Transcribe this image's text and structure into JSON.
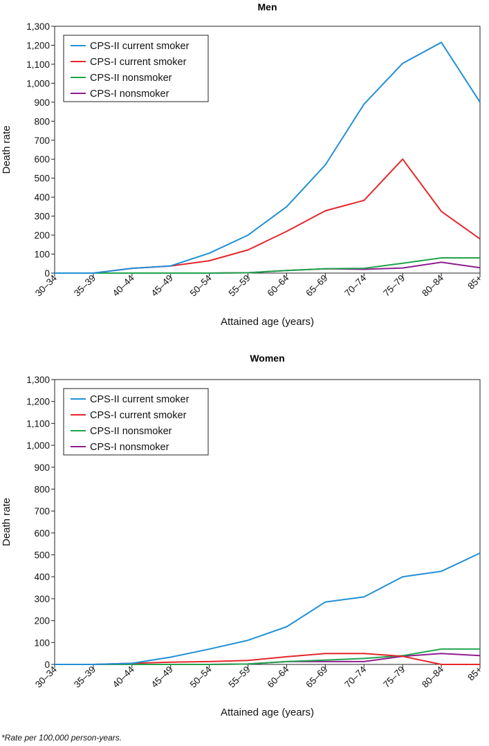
{
  "footnote": "*Rate per 100,000 person-years.",
  "chart_data": [
    {
      "type": "line",
      "title": "Men",
      "xlabel": "Attained age (years)",
      "ylabel": "Death rate",
      "ylim": [
        0,
        1300
      ],
      "yticks": [
        0,
        100,
        200,
        300,
        400,
        500,
        600,
        700,
        800,
        900,
        1000,
        1100,
        1200,
        1300
      ],
      "ytick_labels": [
        "0",
        "100",
        "200",
        "300",
        "400",
        "500",
        "600",
        "700",
        "800",
        "900",
        "1,000",
        "1,100",
        "1,200",
        "1,300"
      ],
      "categories": [
        "30–34",
        "35–39",
        "40–44",
        "45–49",
        "50–54",
        "55–59",
        "60–64",
        "65–69",
        "70–74",
        "75–79",
        "80–84",
        "85+"
      ],
      "legend_position": "top-left",
      "grid": false,
      "series": [
        {
          "name": "CPS-II current smoker",
          "color": "#1f8fd6",
          "values": [
            0,
            0,
            25,
            38,
            105,
            200,
            350,
            570,
            890,
            1105,
            1215,
            900
          ]
        },
        {
          "name": "CPS-I current smoker",
          "color": "#e3262b",
          "values": [
            0,
            0,
            25,
            37,
            65,
            122,
            220,
            328,
            383,
            600,
            325,
            180
          ]
        },
        {
          "name": "CPS-II nonsmoker",
          "color": "#1fa34a",
          "values": [
            0,
            0,
            0,
            0,
            0,
            2,
            14,
            23,
            25,
            52,
            80,
            80
          ]
        },
        {
          "name": "CPS-I nonsmoker",
          "color": "#8e1d8e",
          "values": [
            0,
            0,
            0,
            0,
            0,
            2,
            14,
            23,
            20,
            27,
            57,
            28
          ]
        }
      ]
    },
    {
      "type": "line",
      "title": "Women",
      "xlabel": "Attained age (years)",
      "ylabel": "Death rate",
      "ylim": [
        0,
        1300
      ],
      "yticks": [
        0,
        100,
        200,
        300,
        400,
        500,
        600,
        700,
        800,
        900,
        1000,
        1100,
        1200,
        1300
      ],
      "ytick_labels": [
        "0",
        "100",
        "200",
        "300",
        "400",
        "500",
        "600",
        "700",
        "800",
        "900",
        "1,000",
        "1,100",
        "1,200",
        "1,300"
      ],
      "categories": [
        "30–34",
        "35–39",
        "40–44",
        "45–49",
        "50–54",
        "55–59",
        "60–64",
        "65–69",
        "70–74",
        "75–79",
        "80–84",
        "85+"
      ],
      "legend_position": "top-left",
      "grid": false,
      "series": [
        {
          "name": "CPS-II current smoker",
          "color": "#1f8fd6",
          "values": [
            0,
            0,
            5,
            33,
            70,
            110,
            172,
            285,
            308,
            400,
            425,
            508
          ]
        },
        {
          "name": "CPS-I current smoker",
          "color": "#e3262b",
          "values": [
            0,
            0,
            5,
            10,
            13,
            18,
            35,
            50,
            50,
            37,
            0,
            0
          ]
        },
        {
          "name": "CPS-II nonsmoker",
          "color": "#1fa34a",
          "values": [
            0,
            0,
            0,
            0,
            0,
            2,
            13,
            20,
            27,
            40,
            70,
            70
          ]
        },
        {
          "name": "CPS-I nonsmoker",
          "color": "#8e1d8e",
          "values": [
            0,
            0,
            0,
            0,
            0,
            2,
            13,
            13,
            13,
            37,
            50,
            40
          ]
        }
      ]
    }
  ]
}
